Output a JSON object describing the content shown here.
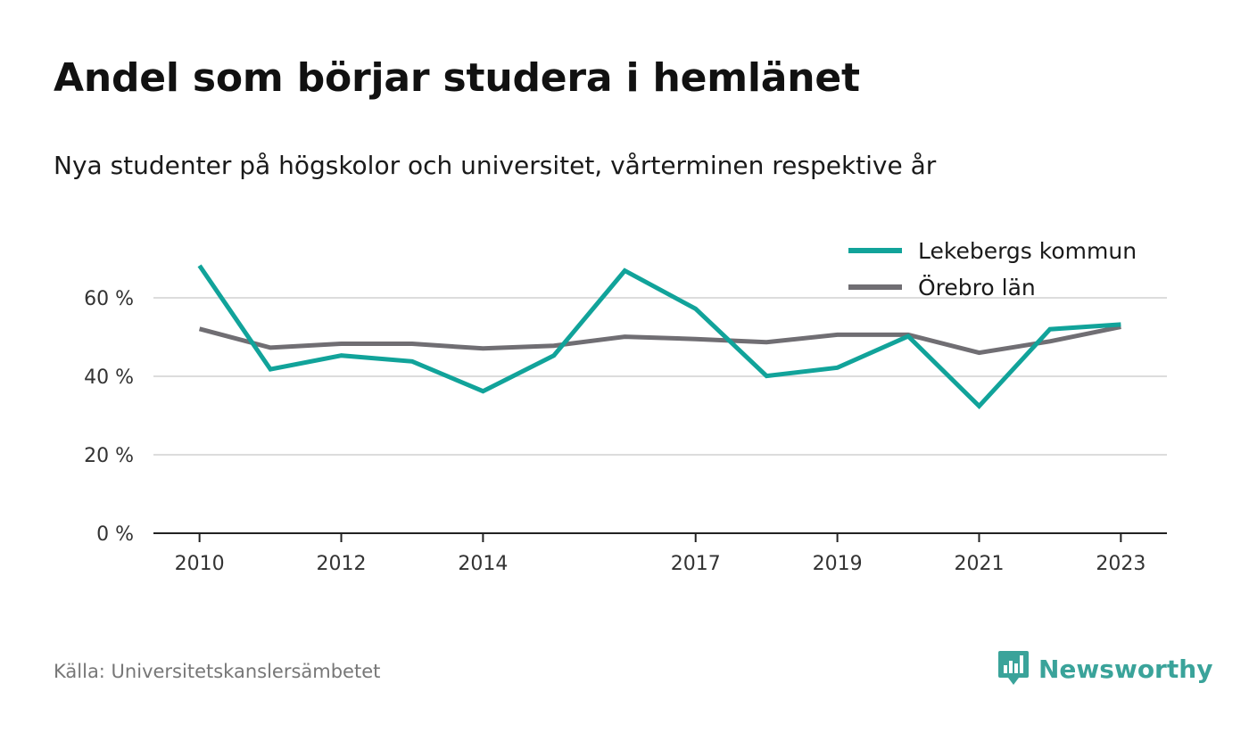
{
  "title": "Andel som börjar studera i hemlänet",
  "subtitle": "Nya studenter på högskolor och universitet, vårterminen respektive år",
  "source": "Källa: Universitetskanslersämbetet",
  "brand": {
    "name": "Newsworthy",
    "icon": "newsworthy-logo-icon",
    "color": "#3aa39a"
  },
  "chart_data": {
    "type": "line",
    "x": [
      2010,
      2011,
      2012,
      2013,
      2014,
      2015,
      2016,
      2017,
      2018,
      2019,
      2020,
      2021,
      2022,
      2023
    ],
    "x_ticks": [
      2010,
      2012,
      2014,
      2017,
      2019,
      2021,
      2023
    ],
    "x_tick_labels": [
      "2010",
      "2012",
      "2014",
      "2017",
      "2019",
      "2021",
      "2023"
    ],
    "y_ticks": [
      0,
      20,
      40,
      60
    ],
    "y_tick_labels": [
      "0 %",
      "20 %",
      "40 %",
      "60 %"
    ],
    "ylim": [
      0,
      70
    ],
    "xlim": [
      2009.35,
      2023.65
    ],
    "grid": true,
    "legend_position": "top-right",
    "series": [
      {
        "name": "Lekebergs kommun",
        "color": "#11a39a",
        "values": [
          68.2,
          41.8,
          45.3,
          43.8,
          36.2,
          45.3,
          66.9,
          57.2,
          40.1,
          42.2,
          50.2,
          32.4,
          52.0,
          53.2
        ]
      },
      {
        "name": "Örebro län",
        "color": "#706e73",
        "values": [
          52.1,
          47.3,
          48.3,
          48.3,
          47.1,
          47.8,
          50.1,
          49.5,
          48.7,
          50.6,
          50.6,
          46.0,
          48.9,
          52.6
        ]
      }
    ]
  }
}
